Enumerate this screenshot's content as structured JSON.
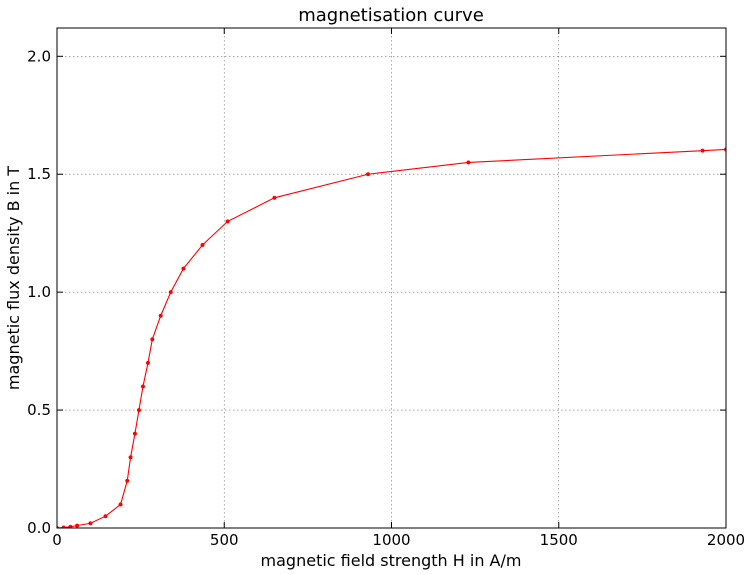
{
  "chart_data": {
    "type": "line",
    "title": "magnetisation curve",
    "xlabel": "magnetic field strength H  in  A/m",
    "ylabel": "magnetic flux density B in T",
    "xlim": [
      0,
      2000
    ],
    "ylim": [
      0,
      2.12
    ],
    "xticks": [
      0,
      500,
      1000,
      1500,
      2000
    ],
    "xtick_labels": [
      "0",
      "500",
      "1000",
      "1500",
      "2000"
    ],
    "yticks": [
      0.0,
      0.5,
      1.0,
      1.5,
      2.0
    ],
    "ytick_labels": [
      "0.0",
      "0.5",
      "1.0",
      "1.5",
      "2.0"
    ],
    "grid": true,
    "colors": {
      "series": "#ff0000"
    },
    "series": [
      {
        "x": [
          0,
          20,
          40,
          60,
          100,
          145,
          190,
          210,
          220,
          233,
          245,
          257,
          272,
          285,
          310,
          340,
          378,
          435,
          510,
          650,
          930,
          1230,
          1930,
          2000
        ],
        "y": [
          0.0,
          0.002,
          0.005,
          0.01,
          0.02,
          0.05,
          0.1,
          0.2,
          0.3,
          0.4,
          0.5,
          0.6,
          0.7,
          0.8,
          0.9,
          1.0,
          1.1,
          1.2,
          1.3,
          1.4,
          1.5,
          1.55,
          1.6,
          1.605
        ]
      }
    ]
  }
}
